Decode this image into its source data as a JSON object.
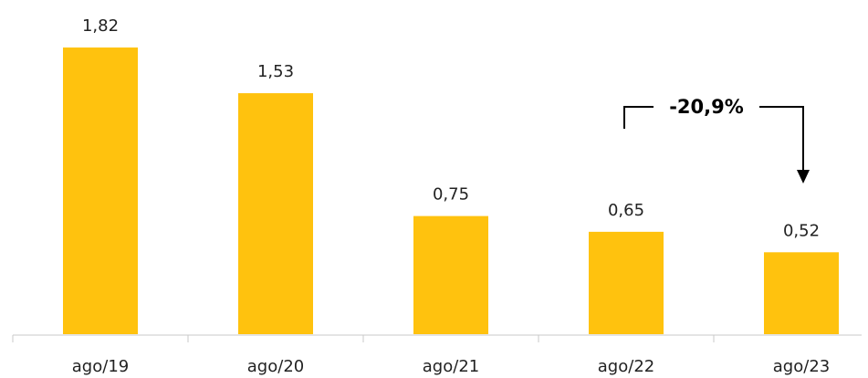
{
  "chart_data": {
    "type": "bar",
    "categories": [
      "ago/19",
      "ago/20",
      "ago/21",
      "ago/22",
      "ago/23"
    ],
    "values": [
      1.82,
      1.53,
      0.75,
      0.65,
      0.52
    ],
    "data_labels": [
      "1,82",
      "1,53",
      "0,75",
      "0,65",
      "0,52"
    ],
    "title": "",
    "xlabel": "",
    "ylabel": "",
    "ylim": [
      0,
      2
    ],
    "grid": false,
    "legend": "none",
    "bar_color": "#FFC20E",
    "annotation": {
      "text": "-20,9%",
      "from_category": "ago/22",
      "to_category": "ago/23"
    }
  }
}
